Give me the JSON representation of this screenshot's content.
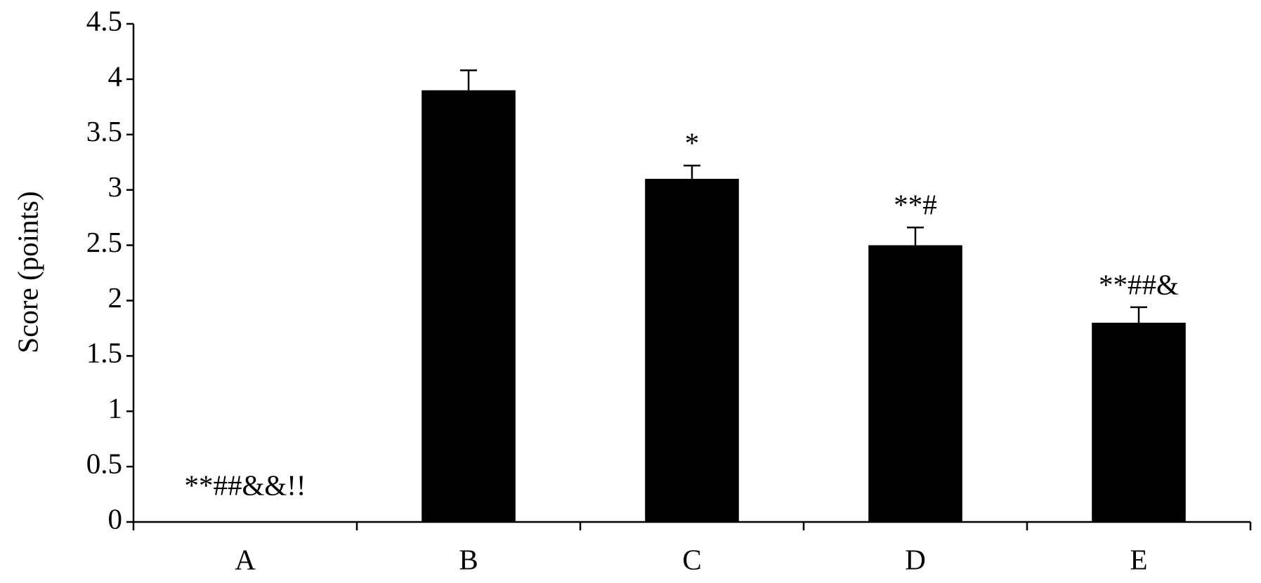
{
  "chart_data": {
    "type": "bar",
    "y_label": "Score (points)",
    "categories": [
      "A",
      "B",
      "C",
      "D",
      "E"
    ],
    "values": [
      0,
      3.9,
      3.1,
      2.5,
      1.8
    ],
    "errors": [
      0,
      0.18,
      0.12,
      0.16,
      0.14
    ],
    "annotations": [
      "**##&&!!",
      null,
      "*",
      "**#",
      "**##&"
    ],
    "color": "#000000",
    "ylim": [
      0,
      4.5
    ],
    "yticks": [
      0,
      0.5,
      1,
      1.5,
      2,
      2.5,
      3,
      3.5,
      4,
      4.5
    ],
    "grid": false
  }
}
